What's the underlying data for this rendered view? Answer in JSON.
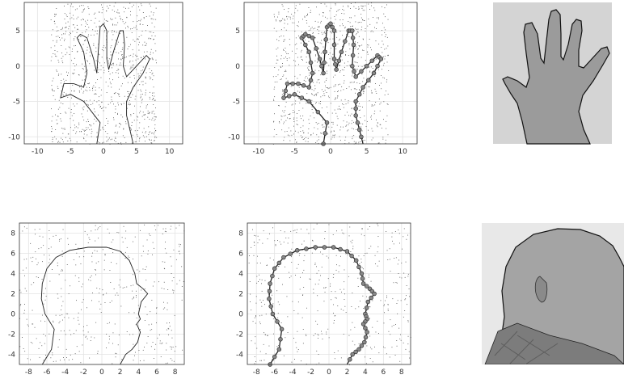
{
  "figure": {
    "panels_desc": "hand row and head row"
  },
  "chart_data": [
    {
      "type": "scatter",
      "id": "hand-contour",
      "title": "",
      "xlabel": "",
      "ylabel": "",
      "xlim": [
        -12,
        12
      ],
      "ylim": [
        -11,
        9
      ],
      "xticks": [
        -10,
        -5,
        0,
        5,
        10
      ],
      "yticks": [
        5,
        0,
        -5,
        -10
      ],
      "grid": true,
      "noise_points": true,
      "contour_color": "#222222",
      "marker_points": false
    },
    {
      "type": "scatter",
      "id": "hand-fit",
      "title": "",
      "xlabel": "",
      "ylabel": "",
      "xlim": [
        -12,
        12
      ],
      "ylim": [
        -11,
        9
      ],
      "xticks": [
        -10,
        -5,
        0,
        5,
        10
      ],
      "yticks": [
        5,
        0,
        -5,
        -10
      ],
      "grid": true,
      "noise_points": true,
      "contour_color": "#222222",
      "marker_points": true,
      "marker_color": "#888888"
    },
    {
      "type": "scatter",
      "id": "head-contour",
      "title": "",
      "xlabel": "",
      "ylabel": "",
      "xlim": [
        -9,
        9
      ],
      "ylim": [
        -5,
        9
      ],
      "xticks": [
        -8,
        -6,
        -4,
        -2,
        0,
        2,
        4,
        6,
        8
      ],
      "yticks": [
        8,
        6,
        4,
        2,
        0,
        -2,
        -4
      ],
      "grid": true,
      "noise_points": true,
      "contour_color": "#222222",
      "marker_points": false
    },
    {
      "type": "scatter",
      "id": "head-fit",
      "title": "",
      "xlabel": "",
      "ylabel": "",
      "xlim": [
        -9,
        9
      ],
      "ylim": [
        -5,
        9
      ],
      "xticks": [
        -8,
        -6,
        -4,
        -2,
        0,
        2,
        4,
        6,
        8
      ],
      "yticks": [
        8,
        6,
        4,
        2,
        0,
        -2,
        -4
      ],
      "grid": true,
      "noise_points": true,
      "contour_color": "#222222",
      "marker_points": true,
      "marker_color": "#888888"
    }
  ],
  "photos": [
    {
      "id": "hand-photo",
      "subject": "hand",
      "background": "#d9d9d9",
      "skin": "#8f8f8f"
    },
    {
      "id": "head-photo",
      "subject": "head-profile",
      "background": "#e6e6e6",
      "skin": "#9a9a9a"
    }
  ]
}
